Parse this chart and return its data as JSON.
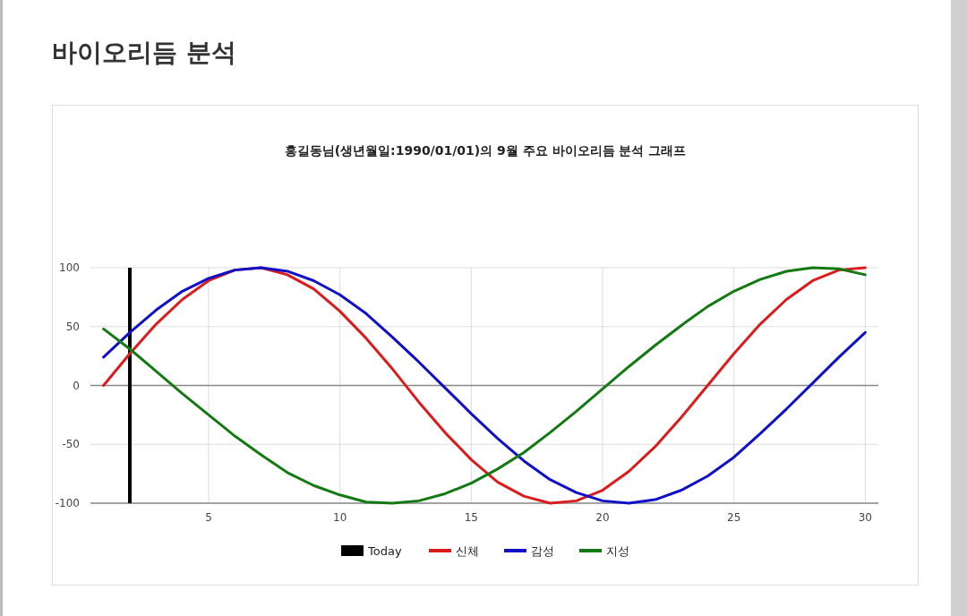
{
  "chart_data": {
    "type": "line",
    "title": "바이오리듬 분석",
    "subtitle": "홍길동님(생년월일:1990/01/01)의 9월 주요 바이오리듬 분석 그래프",
    "x": [
      1,
      2,
      3,
      4,
      5,
      6,
      7,
      8,
      9,
      10,
      11,
      12,
      13,
      14,
      15,
      16,
      17,
      18,
      19,
      20,
      21,
      22,
      23,
      24,
      25,
      26,
      27,
      28,
      29,
      30
    ],
    "series": [
      {
        "name": "신체",
        "color": "#dc1c1c",
        "values": [
          0,
          27,
          52,
          73,
          89,
          98,
          100,
          94,
          82,
          63,
          40,
          14,
          -14,
          -40,
          -63,
          -82,
          -94,
          -100,
          -98,
          -89,
          -73,
          -52,
          -27,
          0,
          27,
          52,
          73,
          89,
          98,
          100
        ]
      },
      {
        "name": "감성",
        "color": "#1010c8",
        "values": [
          24,
          45,
          64,
          80,
          91,
          98,
          100,
          97,
          89,
          77,
          61,
          41,
          20,
          -2,
          -24,
          -45,
          -64,
          -80,
          -91,
          -98,
          -100,
          -97,
          -89,
          -77,
          -61,
          -41,
          -20,
          2,
          24,
          45
        ]
      },
      {
        "name": "지성",
        "color": "#137a13",
        "values": [
          48,
          31,
          12,
          -7,
          -25,
          -43,
          -59,
          -74,
          -85,
          -93,
          -99,
          -100,
          -98,
          -92,
          -83,
          -71,
          -57,
          -40,
          -22,
          -3,
          16,
          34,
          51,
          67,
          80,
          90,
          97,
          100,
          99,
          94
        ]
      }
    ],
    "xlim": [
      0.5,
      30.5
    ],
    "xticks": [
      5,
      10,
      15,
      20,
      25,
      30
    ],
    "ylim": [
      -100,
      100
    ],
    "yticks": [
      -100,
      -50,
      0,
      50,
      100
    ],
    "ref_lines": [
      {
        "axis": "x",
        "value": 2,
        "label": "Today",
        "color": "#000000"
      }
    ],
    "grid": true,
    "legend": "bottom",
    "marker": "none",
    "line_style": "solid"
  }
}
